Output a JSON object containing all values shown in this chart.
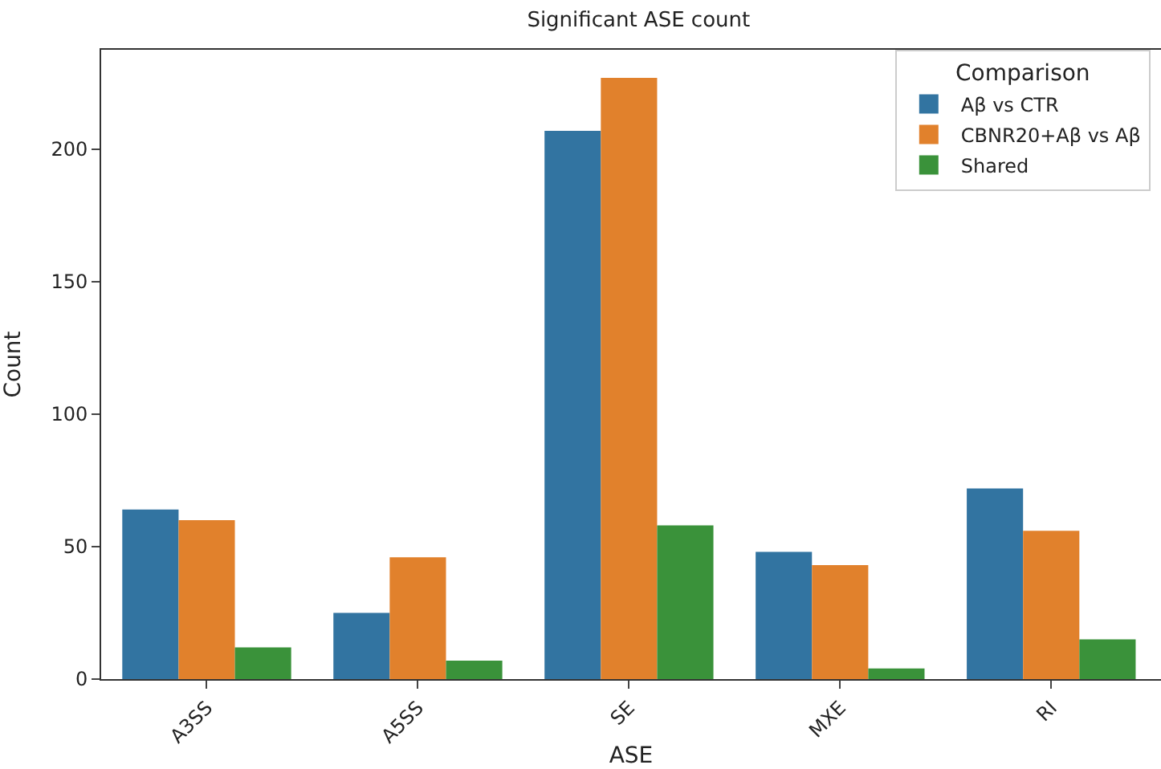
{
  "chart_data": {
    "type": "bar",
    "title": "Significant ASE count",
    "xlabel": "ASE",
    "ylabel": "Count",
    "legend_title": "Comparison",
    "categories": [
      "A3SS",
      "A5SS",
      "SE",
      "MXE",
      "RI"
    ],
    "series": [
      {
        "name": "Aβ vs CTR",
        "color": "#3274a1",
        "values": [
          64,
          25,
          207,
          48,
          72
        ]
      },
      {
        "name": "CBNR20+Aβ vs Aβ",
        "color": "#e1812c",
        "values": [
          60,
          46,
          227,
          43,
          56
        ]
      },
      {
        "name": "Shared",
        "color": "#3a923a",
        "values": [
          12,
          7,
          58,
          4,
          15
        ]
      }
    ],
    "ylim": [
      0,
      237.6
    ],
    "yticks": [
      0,
      50,
      100,
      150,
      200
    ],
    "legend": "top right"
  }
}
